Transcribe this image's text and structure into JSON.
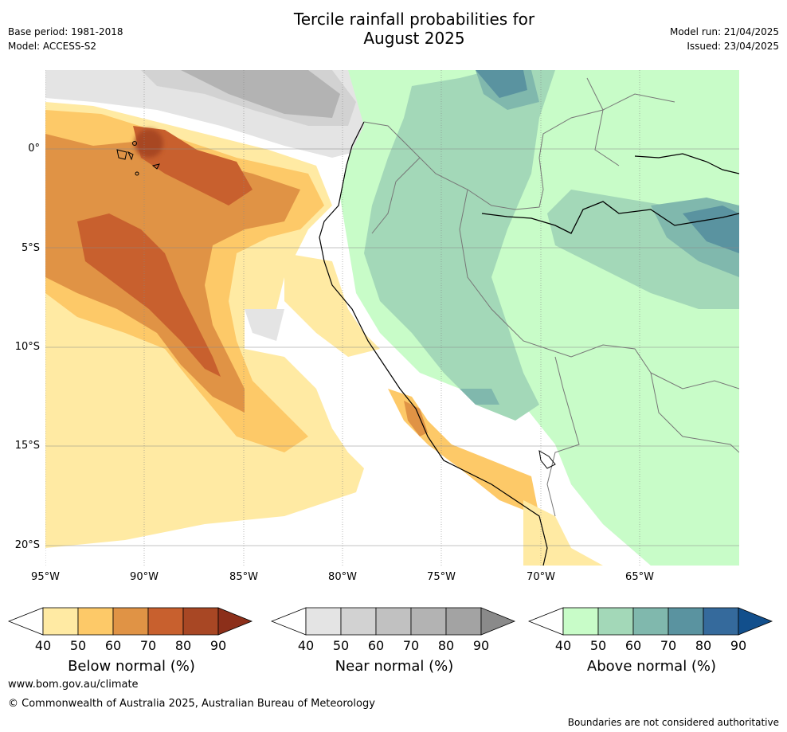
{
  "title": "Tercile rainfall probabilities for August 2025",
  "title_line1": "Tercile rainfall probabilities for",
  "title_line2": "August 2025",
  "base_period": "Base period: 1981-2018",
  "model": "Model: ACCESS-S2",
  "model_run": "Model run: 21/04/2025",
  "issued": "Issued: 23/04/2025",
  "map": {
    "lat_ticks": [
      "0°",
      "5°S",
      "10°S",
      "15°S",
      "20°S"
    ],
    "lon_ticks": [
      "95°W",
      "90°W",
      "85°W",
      "80°W",
      "75°W",
      "70°W",
      "65°W"
    ]
  },
  "colorbars": [
    {
      "label": "Below normal (%)",
      "ticks": [
        "40",
        "50",
        "60",
        "70",
        "80",
        "90"
      ],
      "colors": [
        "#ffffff",
        "#ffeaa3",
        "#fdc968",
        "#e09345",
        "#c8602e",
        "#a84724",
        "#8c2f1a"
      ]
    },
    {
      "label": "Near normal (%)",
      "ticks": [
        "40",
        "50",
        "60",
        "70",
        "80",
        "90"
      ],
      "colors": [
        "#ffffff",
        "#e4e4e4",
        "#d2d2d2",
        "#c1c1c1",
        "#b3b3b3",
        "#a3a3a3",
        "#8a8a8a"
      ]
    },
    {
      "label": "Above normal (%)",
      "ticks": [
        "40",
        "50",
        "60",
        "70",
        "80",
        "90"
      ],
      "colors": [
        "#ffffff",
        "#c8fcc8",
        "#a3d8b8",
        "#80b8ad",
        "#5a93a0",
        "#356a9c",
        "#124f8c"
      ]
    }
  ],
  "footer": {
    "website": "www.bom.gov.au/climate",
    "copyright": "© Commonwealth of Australia 2025, Australian Bureau of Meteorology",
    "disclaimer": "Boundaries are not considered authoritative"
  }
}
